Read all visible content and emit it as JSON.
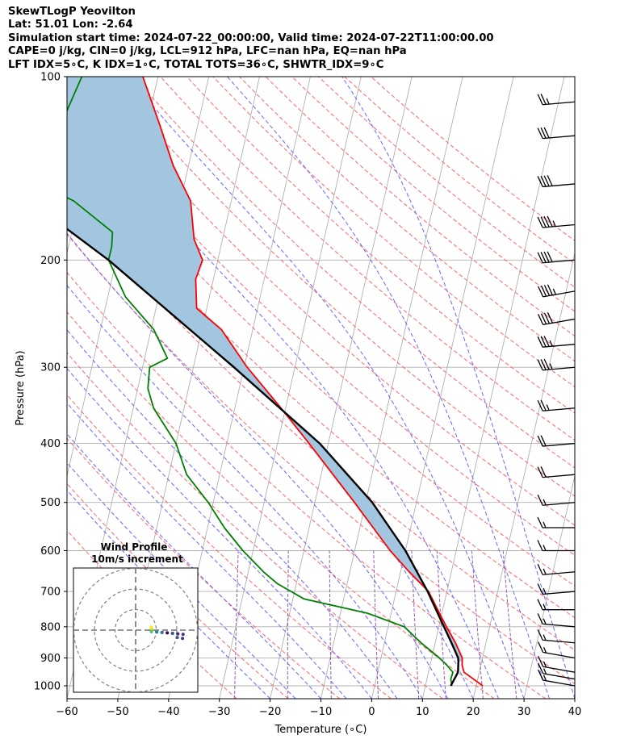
{
  "header": {
    "line1": "SkewTLogP Yeovilton",
    "line2": "Lat: 51.01   Lon: -2.64",
    "line3": "Simulation start time: 2024-07-22_00:00:00, Valid time: 2024-07-22T11:00:00.00",
    "line4": "CAPE=0 j/kg, CIN=0 j/kg, LCL=912 hPa, LFC=nan hPa, EQ=nan hPa",
    "line5": "LFT IDX=5∘C, K IDX=1∘C, TOTAL TOTS=36∘C, SHWTR_IDX=9∘C"
  },
  "chart_data": {
    "type": "line",
    "subtype": "skew-T log-P diagram",
    "xlabel": "Temperature (∘C)",
    "ylabel": "Pressure (hPa)",
    "xlim": [
      -60,
      40
    ],
    "ylim": [
      1050,
      100
    ],
    "y_scale": "log",
    "x_ticks": [
      "−60",
      "−50",
      "−40",
      "−30",
      "−20",
      "−10",
      "0",
      "10",
      "20",
      "30",
      "40"
    ],
    "y_ticks": [
      1000,
      900,
      800,
      700,
      600,
      500,
      400,
      300,
      200,
      100
    ],
    "grid": true,
    "colors": {
      "temperature": "#ff0000",
      "dewpoint": "#008000",
      "parcel": "#000000",
      "shade": "#a2c6df",
      "dry_adiabat": "#ff6666",
      "moist_adiabat": "#6666ff",
      "mixing_ratio": "#9b59b6"
    },
    "temperature": [
      {
        "p": 1000,
        "t": 21.3
      },
      {
        "p": 950,
        "t": 17.0
      },
      {
        "p": 925,
        "t": 16.3
      },
      {
        "p": 900,
        "t": 16.0
      },
      {
        "p": 850,
        "t": 14.0
      },
      {
        "p": 800,
        "t": 11.5
      },
      {
        "p": 750,
        "t": 9.0
      },
      {
        "p": 700,
        "t": 6.4
      },
      {
        "p": 650,
        "t": 1.7
      },
      {
        "p": 600,
        "t": -3.0
      },
      {
        "p": 500,
        "t": -12.2
      },
      {
        "p": 400,
        "t": -23.8
      },
      {
        "p": 350,
        "t": -30.9
      },
      {
        "p": 300,
        "t": -39.4
      },
      {
        "p": 260,
        "t": -46.2
      },
      {
        "p": 240,
        "t": -52.0
      },
      {
        "p": 215,
        "t": -53.5
      },
      {
        "p": 200,
        "t": -53.0
      },
      {
        "p": 185,
        "t": -55.6
      },
      {
        "p": 160,
        "t": -58.0
      },
      {
        "p": 140,
        "t": -63.0
      },
      {
        "p": 120,
        "t": -67.5
      },
      {
        "p": 100,
        "t": -73.0
      }
    ],
    "dewpoint": [
      {
        "p": 1000,
        "t": 15.2
      },
      {
        "p": 975,
        "t": 14.7
      },
      {
        "p": 950,
        "t": 14.8
      },
      {
        "p": 925,
        "t": 13.3
      },
      {
        "p": 900,
        "t": 11.5
      },
      {
        "p": 850,
        "t": 7.2
      },
      {
        "p": 800,
        "t": 3.2
      },
      {
        "p": 760,
        "t": -4.7
      },
      {
        "p": 720,
        "t": -17.8
      },
      {
        "p": 680,
        "t": -23.7
      },
      {
        "p": 650,
        "t": -27.0
      },
      {
        "p": 600,
        "t": -32.0
      },
      {
        "p": 550,
        "t": -36.7
      },
      {
        "p": 500,
        "t": -41.0
      },
      {
        "p": 450,
        "t": -46.5
      },
      {
        "p": 400,
        "t": -50.0
      },
      {
        "p": 350,
        "t": -56.0
      },
      {
        "p": 325,
        "t": -58.0
      },
      {
        "p": 300,
        "t": -58.6
      },
      {
        "p": 290,
        "t": -55.5
      },
      {
        "p": 260,
        "t": -59.5
      },
      {
        "p": 230,
        "t": -66.5
      },
      {
        "p": 200,
        "t": -71.5
      },
      {
        "p": 190,
        "t": -71.5
      },
      {
        "p": 180,
        "t": -72.0
      },
      {
        "p": 160,
        "t": -81.0
      },
      {
        "p": 150,
        "t": -88.6
      },
      {
        "p": 120,
        "t": -87.0
      },
      {
        "p": 100,
        "t": -85.0
      }
    ],
    "parcel": [
      {
        "p": 1000,
        "t": 15.0
      },
      {
        "p": 950,
        "t": 15.8
      },
      {
        "p": 912,
        "t": 15.4
      },
      {
        "p": 900,
        "t": 15.2
      },
      {
        "p": 850,
        "t": 13.2
      },
      {
        "p": 800,
        "t": 11.0
      },
      {
        "p": 700,
        "t": 6.2
      },
      {
        "p": 600,
        "t": 0.0
      },
      {
        "p": 500,
        "t": -8.7
      },
      {
        "p": 400,
        "t": -21.7
      },
      {
        "p": 300,
        "t": -42.0
      },
      {
        "p": 200,
        "t": -71.5
      },
      {
        "p": 150,
        "t": -95.0
      },
      {
        "p": 100,
        "t": -126.3
      }
    ],
    "wind_barbs": [
      {
        "p": 1000,
        "speed_kt": 15,
        "dir_deg": 260
      },
      {
        "p": 975,
        "speed_kt": 15,
        "dir_deg": 260
      },
      {
        "p": 950,
        "speed_kt": 15,
        "dir_deg": 260
      },
      {
        "p": 900,
        "speed_kt": 15,
        "dir_deg": 260
      },
      {
        "p": 850,
        "speed_kt": 15,
        "dir_deg": 265
      },
      {
        "p": 800,
        "speed_kt": 15,
        "dir_deg": 265
      },
      {
        "p": 750,
        "speed_kt": 15,
        "dir_deg": 270
      },
      {
        "p": 700,
        "speed_kt": 15,
        "dir_deg": 275
      },
      {
        "p": 650,
        "speed_kt": 15,
        "dir_deg": 275
      },
      {
        "p": 600,
        "speed_kt": 15,
        "dir_deg": 270
      },
      {
        "p": 550,
        "speed_kt": 15,
        "dir_deg": 270
      },
      {
        "p": 500,
        "speed_kt": 15,
        "dir_deg": 275
      },
      {
        "p": 450,
        "speed_kt": 20,
        "dir_deg": 275
      },
      {
        "p": 400,
        "speed_kt": 20,
        "dir_deg": 275
      },
      {
        "p": 350,
        "speed_kt": 25,
        "dir_deg": 275
      },
      {
        "p": 300,
        "speed_kt": 35,
        "dir_deg": 275
      },
      {
        "p": 275,
        "speed_kt": 35,
        "dir_deg": 275
      },
      {
        "p": 250,
        "speed_kt": 40,
        "dir_deg": 280
      },
      {
        "p": 225,
        "speed_kt": 45,
        "dir_deg": 280
      },
      {
        "p": 200,
        "speed_kt": 40,
        "dir_deg": 275
      },
      {
        "p": 175,
        "speed_kt": 45,
        "dir_deg": 275
      },
      {
        "p": 150,
        "speed_kt": 40,
        "dir_deg": 275
      },
      {
        "p": 125,
        "speed_kt": 30,
        "dir_deg": 275
      },
      {
        "p": 110,
        "speed_kt": 25,
        "dir_deg": 275
      }
    ],
    "inset": {
      "title": "Wind Profile",
      "subtitle": "10m/s increment",
      "rings_m_s": [
        10,
        20,
        30
      ]
    }
  }
}
